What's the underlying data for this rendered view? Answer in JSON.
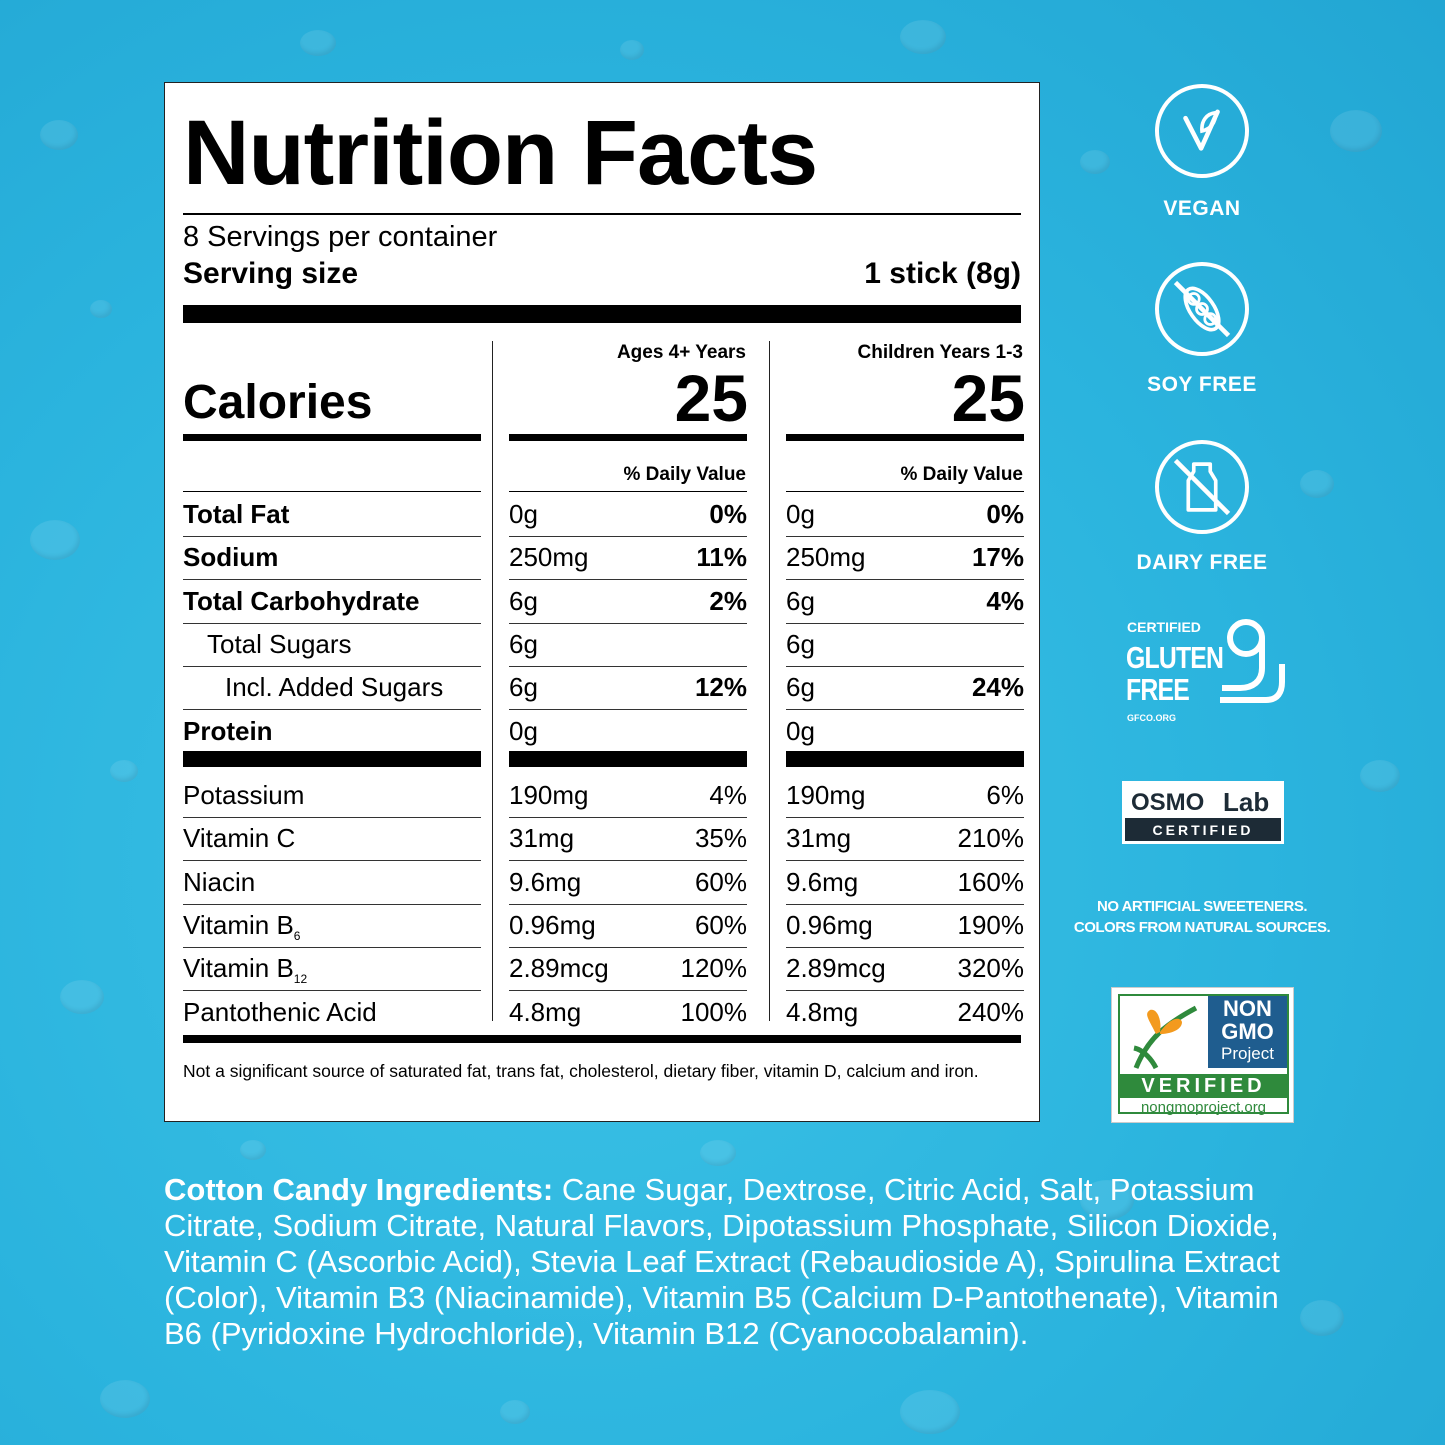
{
  "panel": {
    "title": "Nutrition Facts",
    "servings": "8 Servings per container",
    "serving_size_label": "Serving size",
    "serving_size_value": "1 stick (8g)",
    "calories_label": "Calories",
    "col1_header": "Ages 4+ Years",
    "col2_header": "Children Years 1-3",
    "col1_calories": "25",
    "col2_calories": "25",
    "dv_label": "% Daily Value",
    "rows": [
      {
        "label": "Total Fat",
        "a": "0g",
        "a_dv": "0%",
        "c": "0g",
        "c_dv": "0%"
      },
      {
        "label": "Sodium",
        "a": "250mg",
        "a_dv": "11%",
        "c": "250mg",
        "c_dv": "17%"
      },
      {
        "label": "Total Carbohydrate",
        "a": "6g",
        "a_dv": "2%",
        "c": "6g",
        "c_dv": "4%"
      },
      {
        "label": "Total Sugars",
        "a": "6g",
        "a_dv": "",
        "c": "6g",
        "c_dv": ""
      },
      {
        "label": "Incl. Added Sugars",
        "a": "6g",
        "a_dv": "12%",
        "c": "6g",
        "c_dv": "24%"
      },
      {
        "label": "Protein",
        "a": "0g",
        "a_dv": "",
        "c": "0g",
        "c_dv": ""
      }
    ],
    "vitamins": [
      {
        "label": "Potassium",
        "sub": "",
        "a": "190mg",
        "a_dv": "4%",
        "c": "190mg",
        "c_dv": "6%"
      },
      {
        "label": "Vitamin C",
        "sub": "",
        "a": "31mg",
        "a_dv": "35%",
        "c": "31mg",
        "c_dv": "210%"
      },
      {
        "label": "Niacin",
        "sub": "",
        "a": "9.6mg",
        "a_dv": "60%",
        "c": "9.6mg",
        "c_dv": "160%"
      },
      {
        "label": "Vitamin B",
        "sub": "6",
        "a": "0.96mg",
        "a_dv": "60%",
        "c": "0.96mg",
        "c_dv": "190%"
      },
      {
        "label": "Vitamin B",
        "sub": "12",
        "a": "2.89mcg",
        "a_dv": "120%",
        "c": "2.89mcg",
        "c_dv": "320%"
      },
      {
        "label": "Pantothenic Acid",
        "sub": "",
        "a": "4.8mg",
        "a_dv": "100%",
        "c": "4.8mg",
        "c_dv": "240%"
      }
    ],
    "footnote": "Not a significant source of saturated fat, trans fat, cholesterol, dietary fiber, vitamin D, calcium and iron."
  },
  "badges": {
    "vegan": "VEGAN",
    "soy_free": "SOY FREE",
    "dairy_free": "DAIRY FREE",
    "gluten_certified": "CERTIFIED",
    "gluten": "GLUTEN",
    "free": "FREE",
    "gfco": "GFCO.ORG",
    "osmo": "OSMO",
    "lab": "Lab",
    "osmo_certified": "CERTIFIED",
    "no_artificial_1": "NO ARTIFICIAL SWEETENERS.",
    "no_artificial_2": "COLORS FROM NATURAL SOURCES.",
    "nongmo_non": "NON",
    "nongmo_gmo": "GMO",
    "nongmo_project": "Project",
    "nongmo_verified": "VERIFIED",
    "nongmo_url": "nongmoproject.org"
  },
  "ingredients": {
    "label": "Cotton Candy Ingredients:",
    "text": " Cane Sugar, Dextrose, Citric Acid, Salt, Potassium Citrate, Sodium Citrate, Natural Flavors, Dipotassium Phosphate, Silicon Dioxide, Vitamin C (Ascorbic Acid), Stevia Leaf Extract (Rebaudioside A), Spirulina Extract (Color), Vitamin B3 (Niacinamide), Vitamin B5 (Calcium D-Pantothenate), Vitamin B6 (Pyridoxine Hydrochloride), Vitamin B12 (Cyanocobalamin)."
  },
  "colors": {
    "background": "#2bb4de",
    "panel": "#ffffff",
    "nongmo_green": "#2f8a3c",
    "nongmo_blue": "#1f5d8f",
    "osmo_dark": "#1d2b36"
  }
}
